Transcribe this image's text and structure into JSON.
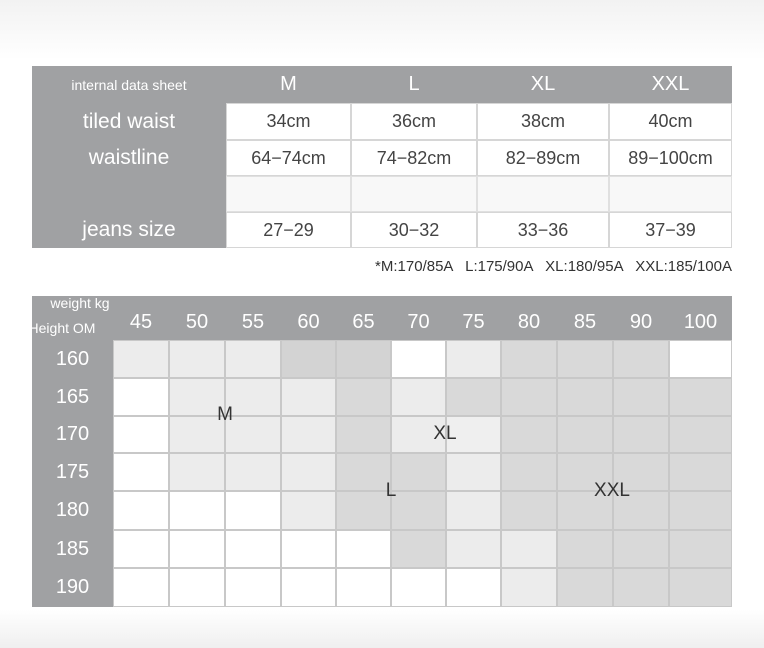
{
  "header": {
    "label": "internal data sheet",
    "sizes": [
      "M",
      "L",
      "XL",
      "XXL"
    ]
  },
  "table": {
    "rows": [
      {
        "label": "tiled waist",
        "cells": [
          "34cm",
          "36cm",
          "38cm",
          "40cm"
        ]
      },
      {
        "label": "waistline",
        "cells": [
          "64−74cm",
          "74−82cm",
          "82−89cm",
          "89−100cm"
        ]
      },
      {
        "label": "jeans size",
        "cells": [
          "27−29",
          "30−32",
          "33−36",
          "37−39"
        ]
      }
    ]
  },
  "note": "*M:170/85A   L:175/90A   XL:180/95A   XXL:185/100A",
  "grid": {
    "weight_label": "weight kg",
    "height_label": "Height OM",
    "weights": [
      45,
      50,
      55,
      60,
      65,
      70,
      75,
      80,
      85,
      90,
      100
    ],
    "heights": [
      160,
      165,
      170,
      175,
      180,
      185,
      190
    ],
    "zones": [
      "M",
      "XL",
      "L",
      "XXL"
    ]
  }
}
